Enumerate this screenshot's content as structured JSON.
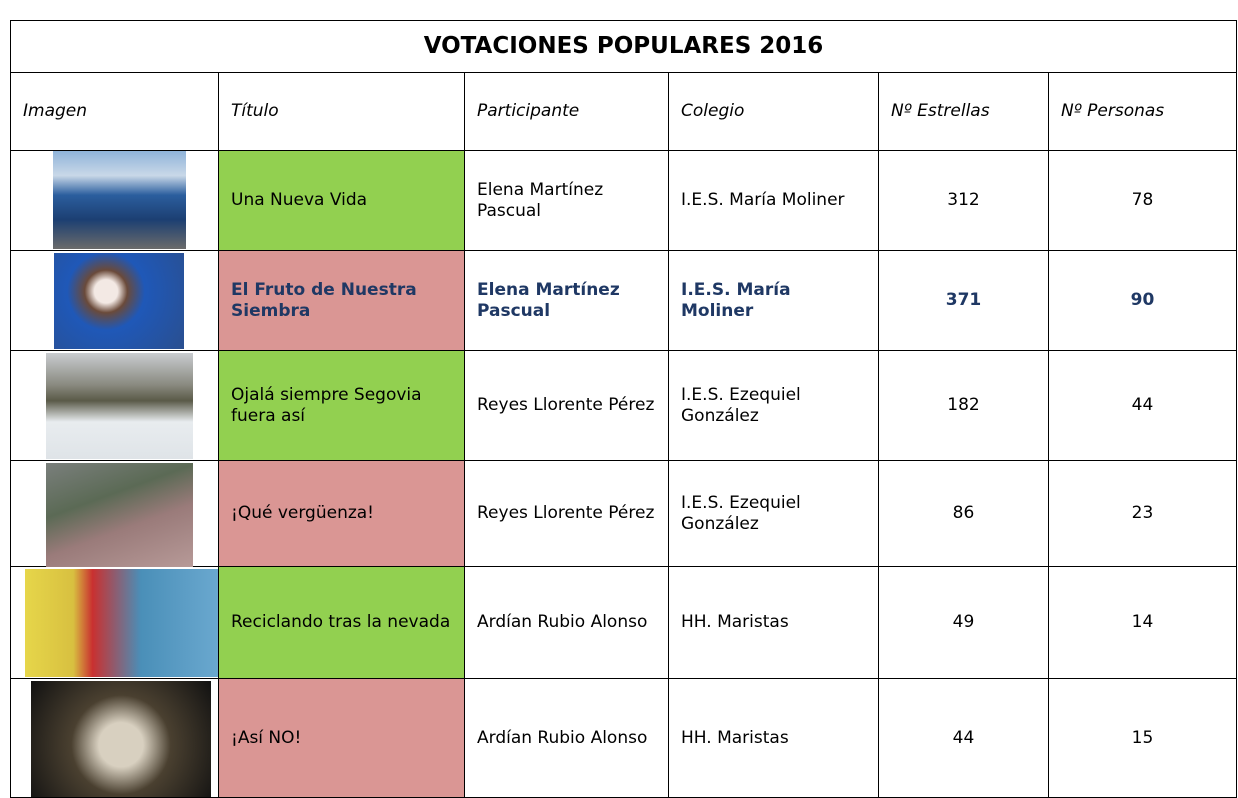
{
  "header": {
    "title": "VOTACIONES POPULARES 2016"
  },
  "table": {
    "columns": [
      "Imagen",
      "Título",
      "Participante",
      "Colegio",
      "Nº Estrellas",
      "Nº Personas"
    ],
    "rows": [
      [
        "Una Nueva Vida",
        "Elena Martínez Pascual",
        "I.E.S. María Moliner",
        312,
        78
      ],
      [
        "El Fruto de Nuestra Siembra",
        "Elena Martínez Pascual",
        "I.E.S. María Moliner",
        371,
        90
      ],
      [
        "Ojalá siempre Segovia fuera así",
        "Reyes Llorente Pérez",
        "I.E.S. Ezequiel González",
        182,
        44
      ],
      [
        "¡Qué vergüenza!",
        "Reyes Llorente Pérez",
        "I.E.S. Ezequiel González",
        86,
        23
      ],
      [
        "Reciclando tras la nevada",
        "Ardían Rubio Alonso",
        "HH. Maristas",
        49,
        14
      ],
      [
        "¡Así NO!",
        "Ardían Rubio Alonso",
        "HH. Maristas",
        44,
        15
      ]
    ]
  }
}
